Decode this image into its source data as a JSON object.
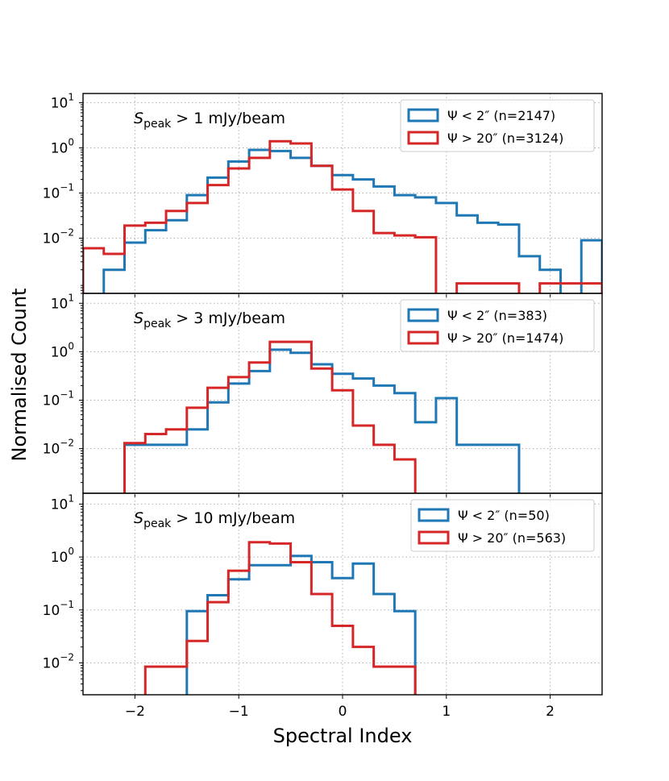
{
  "chart_data": {
    "type": "histogram-step",
    "xlabel": "Spectral Index",
    "ylabel": "Normalised Count",
    "xlim": [
      -2.5,
      2.5
    ],
    "xticks": [
      -2,
      -1,
      0,
      1,
      2
    ],
    "xtick_labels": [
      "−2",
      "−1",
      "0",
      "1",
      "2"
    ],
    "grid": true,
    "bin_edges": [
      -2.5,
      -2.3,
      -2.1,
      -1.9,
      -1.7,
      -1.5,
      -1.3,
      -1.1,
      -0.9,
      -0.7,
      -0.5,
      -0.3,
      -0.1,
      0.1,
      0.3,
      0.5,
      0.7,
      0.9,
      1.1,
      1.3,
      1.5,
      1.7,
      1.9,
      2.1,
      2.3,
      2.5
    ],
    "colors": {
      "compact": "#1f77b4",
      "extended": "#d62728"
    },
    "panels": [
      {
        "title_prefix": "S",
        "title_subscript": "peak",
        "title_suffix": " > 1 mJy/beam",
        "ylim": [
          0.0006,
          16
        ],
        "yticks": [
          0.01,
          0.1,
          1,
          10
        ],
        "ytick_labels": [
          [
            "10",
            "−2"
          ],
          [
            "10",
            "−1"
          ],
          [
            "10",
            "0"
          ],
          [
            "10",
            "1"
          ]
        ],
        "series": [
          {
            "name": "Ψ < 2″ (n=2147)",
            "label_main": "Ψ < 2″",
            "label_n": " (n=2147)",
            "color_key": "compact",
            "values": [
              null,
              0.002,
              0.008,
              0.015,
              0.025,
              0.09,
              0.22,
              0.5,
              0.9,
              0.85,
              0.6,
              0.4,
              0.25,
              0.2,
              0.14,
              0.09,
              0.08,
              0.06,
              0.032,
              0.022,
              0.02,
              0.004,
              0.002,
              null,
              0.009
            ]
          },
          {
            "name": "Ψ > 20″ (n=3124)",
            "label_main": "Ψ > 20″",
            "label_n": " (n=3124)",
            "color_key": "extended",
            "values": [
              0.006,
              0.0045,
              0.019,
              0.022,
              0.04,
              0.06,
              0.15,
              0.35,
              0.6,
              1.4,
              1.25,
              0.4,
              0.12,
              0.04,
              0.013,
              0.0115,
              0.0105,
              null,
              0.001,
              0.001,
              0.001,
              null,
              0.001,
              0.001,
              0.001
            ]
          }
        ]
      },
      {
        "title_prefix": "S",
        "title_subscript": "peak",
        "title_suffix": " > 3 mJy/beam",
        "ylim": [
          0.0012,
          16
        ],
        "yticks": [
          0.01,
          0.1,
          1,
          10
        ],
        "ytick_labels": [
          [
            "10",
            "−2"
          ],
          [
            "10",
            "−1"
          ],
          [
            "10",
            "0"
          ],
          [
            "10",
            "1"
          ]
        ],
        "series": [
          {
            "name": "Ψ < 2″ (n=383)",
            "label_main": "Ψ < 2″",
            "label_n": " (n=383)",
            "color_key": "compact",
            "values": [
              null,
              null,
              0.012,
              0.012,
              0.012,
              0.025,
              0.09,
              0.22,
              0.4,
              1.1,
              0.95,
              0.55,
              0.35,
              0.28,
              0.2,
              0.14,
              0.035,
              0.11,
              0.012,
              0.012,
              0.012,
              null,
              null,
              null,
              null
            ]
          },
          {
            "name": "Ψ > 20″ (n=1474)",
            "label_main": "Ψ > 20″",
            "label_n": " (n=1474)",
            "color_key": "extended",
            "values": [
              null,
              null,
              0.013,
              0.02,
              0.025,
              0.07,
              0.18,
              0.3,
              0.6,
              1.6,
              1.6,
              0.45,
              0.16,
              0.03,
              0.012,
              0.006,
              null,
              null,
              null,
              null,
              null,
              null,
              null,
              null,
              null
            ]
          }
        ]
      },
      {
        "title_prefix": "S",
        "title_subscript": "peak",
        "title_suffix": " > 10 mJy/beam",
        "ylim": [
          0.0025,
          16
        ],
        "yticks": [
          0.01,
          0.1,
          1,
          10
        ],
        "ytick_labels": [
          [
            "10",
            "−2"
          ],
          [
            "10",
            "−1"
          ],
          [
            "10",
            "0"
          ],
          [
            "10",
            "1"
          ]
        ],
        "series": [
          {
            "name": "Ψ < 2″ (n=50)",
            "label_main": "Ψ < 2″",
            "label_n": " (n=50)",
            "color_key": "compact",
            "values": [
              null,
              null,
              null,
              null,
              null,
              0.095,
              0.19,
              0.38,
              0.7,
              0.7,
              1.05,
              0.8,
              0.4,
              0.75,
              0.2,
              0.095,
              null,
              null,
              null,
              null,
              null,
              null,
              null,
              null,
              null
            ]
          },
          {
            "name": "Ψ > 20″ (n=563)",
            "label_main": "Ψ > 20″",
            "label_n": " (n=563)",
            "color_key": "extended",
            "values": [
              null,
              null,
              null,
              0.0085,
              0.0085,
              0.026,
              0.14,
              0.55,
              1.9,
              1.8,
              0.8,
              0.2,
              0.05,
              0.02,
              0.0085,
              0.0085,
              null,
              null,
              null,
              null,
              null,
              null,
              null,
              null,
              null
            ]
          }
        ]
      }
    ]
  }
}
